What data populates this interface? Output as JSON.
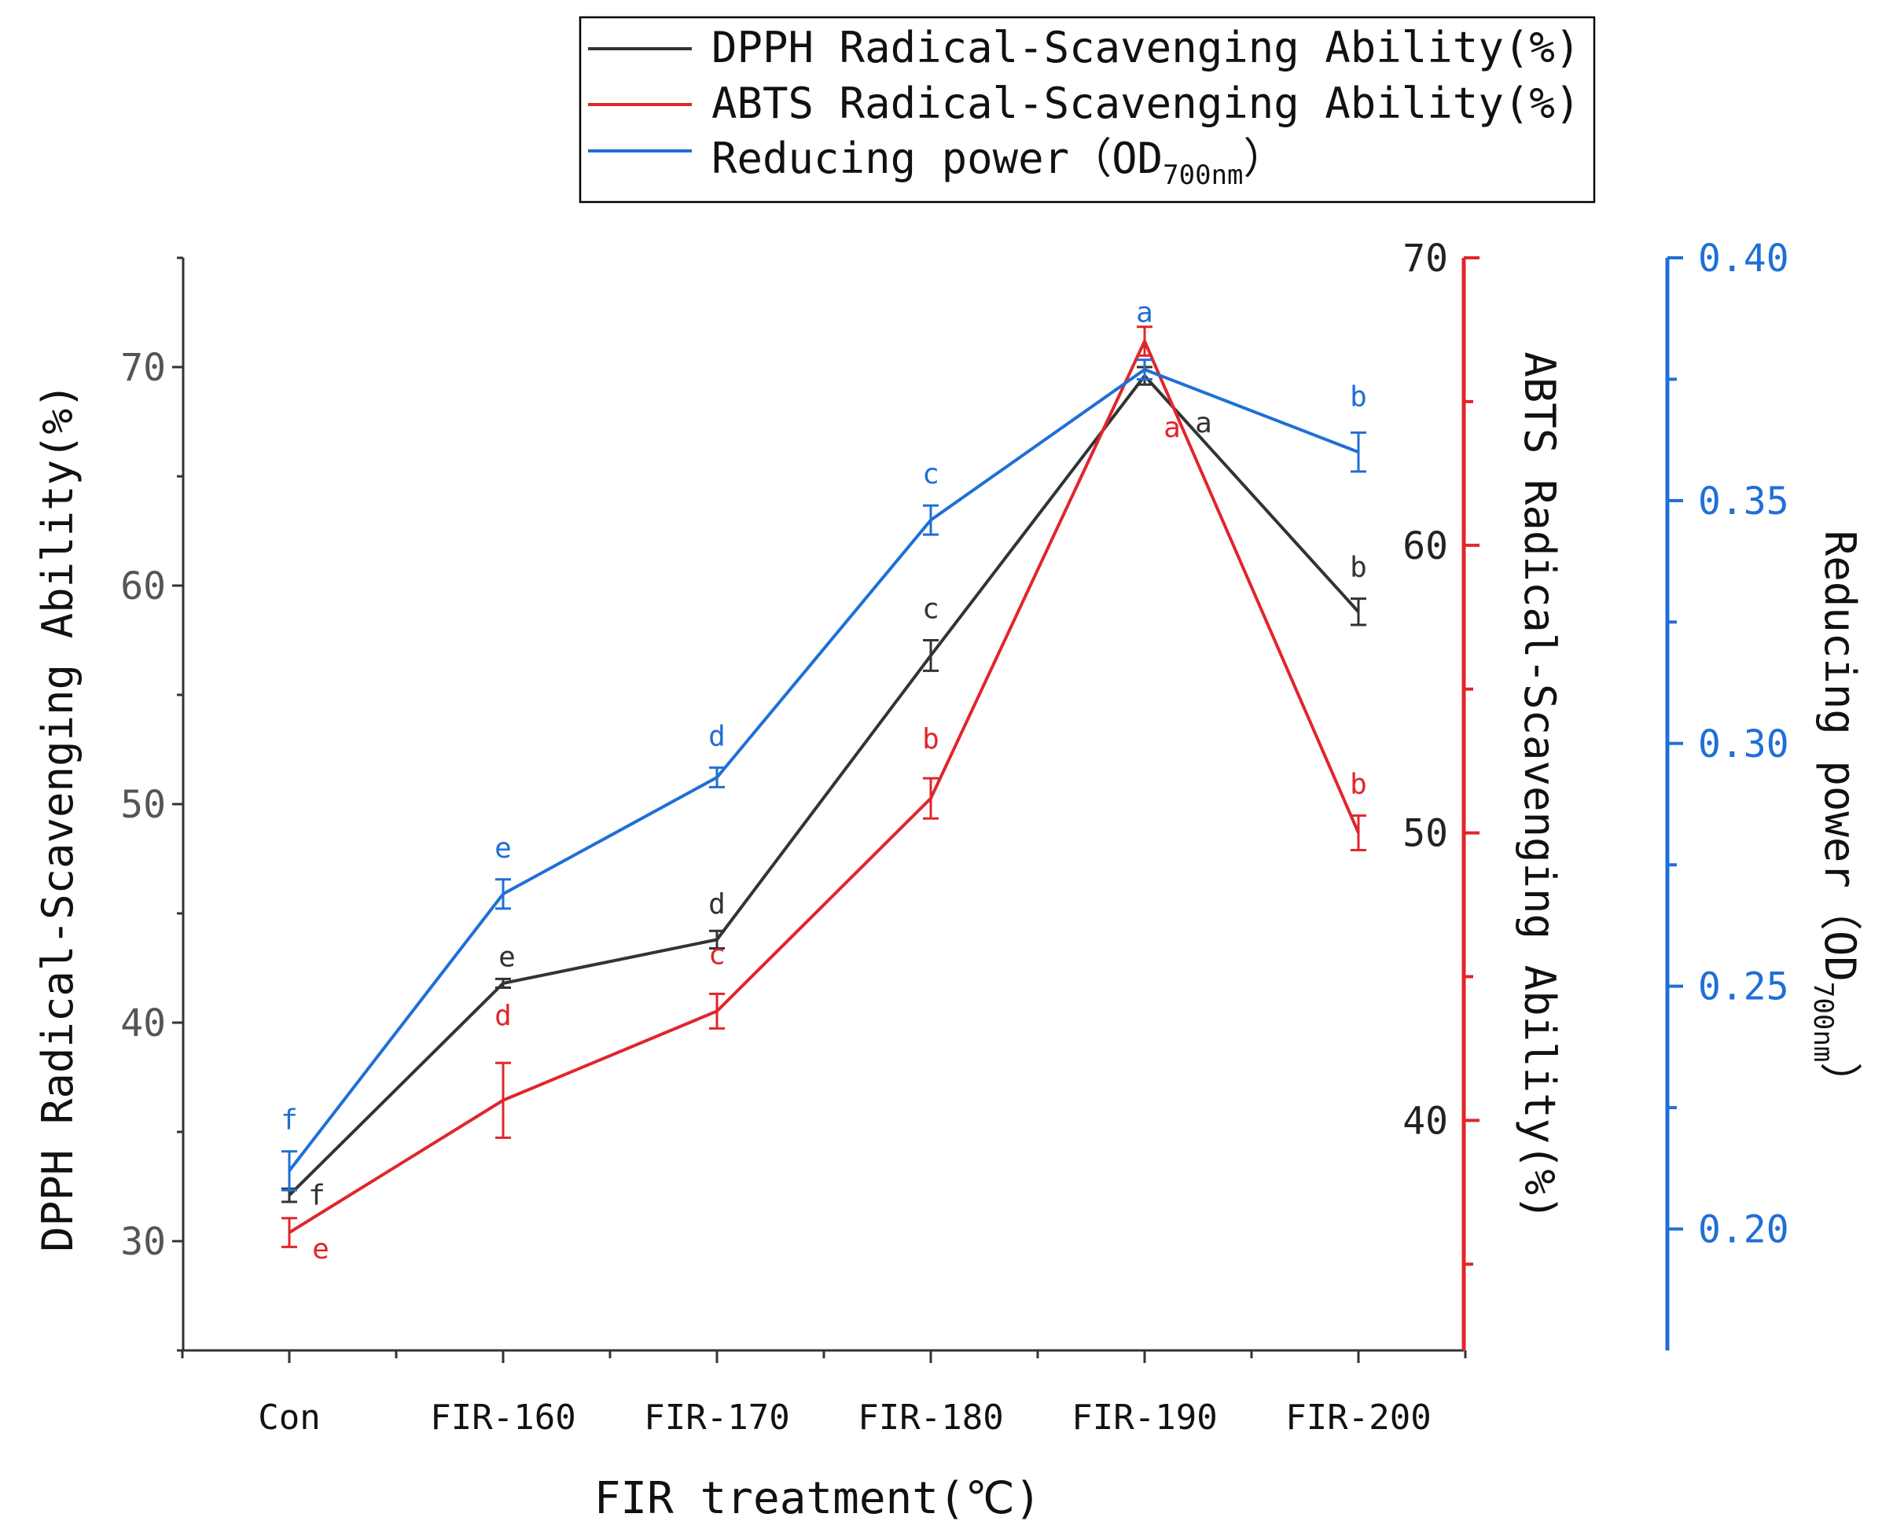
{
  "chart_data": {
    "type": "line",
    "categories": [
      "Con",
      "FIR-160",
      "FIR-170",
      "FIR-180",
      "FIR-190",
      "FIR-200"
    ],
    "xlabel": "FIR treatment(℃)",
    "axes": {
      "left": {
        "label": "DPPH Radical-Scavenging Ability(%)",
        "ylim": [
          25,
          75
        ],
        "ticks": [
          30,
          40,
          50,
          60,
          70
        ],
        "color": "#333333"
      },
      "right1": {
        "label": "ABTS Radical-Scavenging Ability(%)",
        "ylim": [
          32,
          70
        ],
        "ticks": [
          40,
          50,
          60,
          70
        ],
        "color": "#e0262b"
      },
      "right2": {
        "label_main": "Reducing power（OD",
        "label_sub": "700nm",
        "label_end": "）",
        "ylim": [
          0.175,
          0.4
        ],
        "ticks": [
          "0.20",
          "0.25",
          "0.30",
          "0.35",
          "0.40"
        ],
        "tick_values": [
          0.2,
          0.25,
          0.3,
          0.35,
          0.4
        ],
        "color": "#1f6fd6"
      }
    },
    "series": [
      {
        "name": "DPPH Radical-Scavenging Ability(%)",
        "axis": "left",
        "color": "#333333",
        "values": [
          32.1,
          41.8,
          43.8,
          56.8,
          69.6,
          58.8
        ],
        "errors": [
          0.3,
          0.2,
          0.4,
          0.7,
          0.4,
          0.6
        ],
        "letters": [
          "f",
          "e",
          "d",
          "c",
          "a",
          "b"
        ]
      },
      {
        "name": "ABTS Radical-Scavenging Ability(%)",
        "axis": "right1",
        "color": "#e0262b",
        "values": [
          36.1,
          40.7,
          43.8,
          51.2,
          67.1,
          50.0
        ],
        "errors": [
          0.5,
          1.3,
          0.6,
          0.7,
          0.5,
          0.6
        ],
        "letters": [
          "e",
          "d",
          "c",
          "b",
          "a",
          "b"
        ]
      },
      {
        "name": "Reducing power（OD700nm）",
        "axis": "right2",
        "color": "#1f6fd6",
        "values": [
          0.212,
          0.269,
          0.293,
          0.346,
          0.377,
          0.36
        ],
        "errors": [
          0.004,
          0.003,
          0.002,
          0.003,
          0.002,
          0.004
        ],
        "letters": [
          "f",
          "e",
          "d",
          "c",
          "a",
          "b"
        ]
      }
    ],
    "legend": {
      "position": "top-center",
      "entries": [
        {
          "text": "DPPH Radical-Scavenging Ability(%)",
          "color": "#333333"
        },
        {
          "text": "ABTS Radical-Scavenging Ability(%)",
          "color": "#e0262b"
        },
        {
          "text": "Reducing power（OD",
          "sub": "700nm",
          "end": "）",
          "color": "#1f6fd6"
        }
      ]
    }
  }
}
